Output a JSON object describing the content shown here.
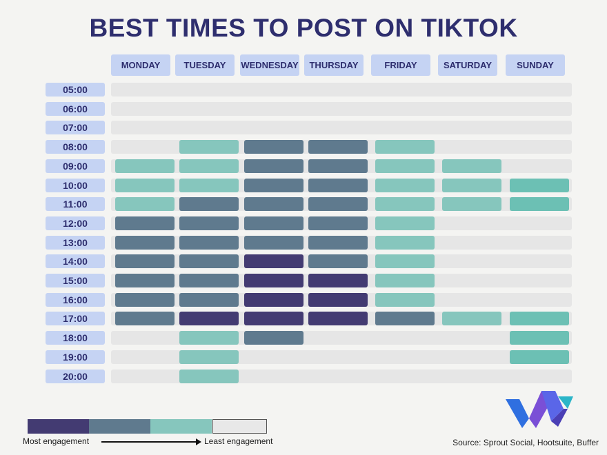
{
  "title": "BEST TIMES TO POST ON TIKTOK",
  "chart_data": {
    "type": "heatmap",
    "title": "BEST TIMES TO POST ON TIKTOK",
    "days": [
      "MONDAY",
      "TUESDAY",
      "WEDNESDAY",
      "THURSDAY",
      "FRIDAY",
      "SATURDAY",
      "SUNDAY"
    ],
    "times": [
      "05:00",
      "06:00",
      "07:00",
      "08:00",
      "09:00",
      "10:00",
      "11:00",
      "12:00",
      "13:00",
      "14:00",
      "15:00",
      "16:00",
      "17:00",
      "18:00",
      "19:00",
      "20:00"
    ],
    "levels_note": "4 = most engagement, 0 = none",
    "values": [
      [
        0,
        0,
        0,
        0,
        0,
        0,
        0
      ],
      [
        0,
        0,
        0,
        0,
        0,
        0,
        0
      ],
      [
        0,
        0,
        0,
        0,
        0,
        0,
        0
      ],
      [
        0,
        2,
        3,
        3,
        2,
        0,
        0
      ],
      [
        2,
        2,
        3,
        3,
        2,
        2,
        0
      ],
      [
        2,
        2,
        3,
        3,
        2,
        2,
        1
      ],
      [
        2,
        3,
        3,
        3,
        2,
        2,
        1
      ],
      [
        3,
        3,
        3,
        3,
        2,
        0,
        0
      ],
      [
        3,
        3,
        3,
        3,
        2,
        0,
        0
      ],
      [
        3,
        3,
        4,
        3,
        2,
        0,
        0
      ],
      [
        3,
        3,
        4,
        4,
        2,
        0,
        0
      ],
      [
        3,
        3,
        4,
        4,
        2,
        0,
        0
      ],
      [
        3,
        4,
        4,
        4,
        3,
        2,
        1
      ],
      [
        0,
        2,
        3,
        0,
        0,
        0,
        1
      ],
      [
        0,
        2,
        0,
        0,
        0,
        0,
        1
      ],
      [
        0,
        2,
        0,
        0,
        0,
        0,
        0
      ]
    ],
    "colors": {
      "4": "#433b72",
      "3": "#5f7a8e",
      "2": "#86c6bd",
      "1": "#6cc0b4",
      "track": "#e6e6e6",
      "header": "#c5d3f3",
      "title": "#2e2e6e"
    },
    "legend": {
      "colors": [
        "#433b72",
        "#5f7a8e",
        "#86c6bd",
        "#e8e8e8"
      ],
      "most_label": "Most engagement",
      "least_label": "Least engagement"
    }
  },
  "source": "Source: Sprout Social, Hootsuite, Buffer"
}
